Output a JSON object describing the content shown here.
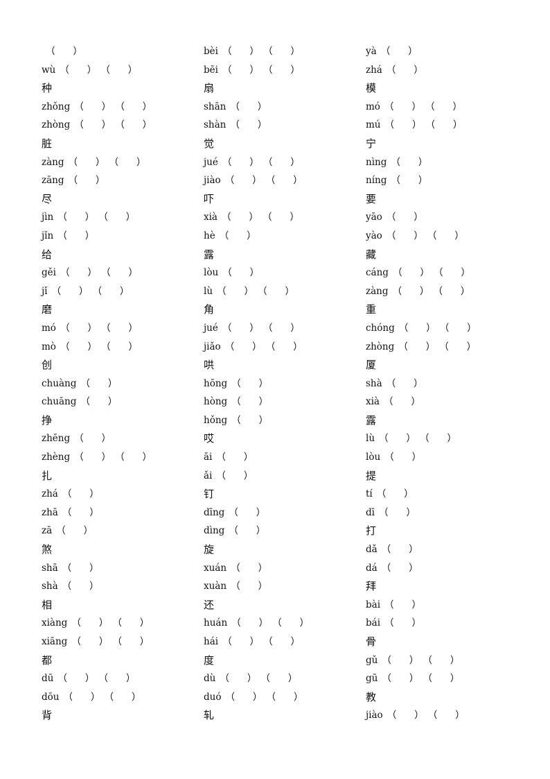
{
  "columns": [
    [
      {
        "t": "",
        "n": 1
      },
      {
        "t": "wù",
        "n": 2
      },
      {
        "t": "种",
        "h": true
      },
      {
        "t": "zhǒng",
        "n": 2
      },
      {
        "t": "zhòng",
        "n": 2
      },
      {
        "t": "脏",
        "h": true
      },
      {
        "t": "zàng",
        "n": 2
      },
      {
        "t": "zāng",
        "n": 1
      },
      {
        "t": "尽",
        "h": true
      },
      {
        "t": "jìn",
        "n": 2
      },
      {
        "t": "jǐn",
        "n": 1
      },
      {
        "t": "给",
        "h": true
      },
      {
        "t": "gěi",
        "n": 2
      },
      {
        "t": "jǐ",
        "n": 2
      },
      {
        "t": "磨",
        "h": true
      },
      {
        "t": "mó",
        "n": 2
      },
      {
        "t": "mò",
        "n": 2
      },
      {
        "t": "创",
        "h": true
      },
      {
        "t": "chuàng",
        "n": 1
      },
      {
        "t": "chuāng",
        "n": 1
      },
      {
        "t": "挣",
        "h": true
      },
      {
        "t": "zhēng",
        "n": 1
      },
      {
        "t": "zhèng",
        "n": 2
      },
      {
        "t": "扎",
        "h": true
      },
      {
        "t": "zhá",
        "n": 1
      },
      {
        "t": "zhā",
        "n": 1
      },
      {
        "t": "zā",
        "n": 1
      },
      {
        "t": "煞",
        "h": true
      },
      {
        "t": "shā",
        "n": 1
      },
      {
        "t": "shà",
        "n": 1
      },
      {
        "t": "相",
        "h": true
      },
      {
        "t": "xiàng",
        "n": 2
      },
      {
        "t": "xiāng",
        "n": 2
      },
      {
        "t": "都",
        "h": true
      },
      {
        "t": "dū",
        "n": 2
      },
      {
        "t": "dōu",
        "n": 2
      },
      {
        "t": "背",
        "h": true
      }
    ],
    [
      {
        "t": "bèi",
        "n": 2
      },
      {
        "t": "bēi",
        "n": 2
      },
      {
        "t": "扇",
        "h": true
      },
      {
        "t": "shān",
        "n": 1
      },
      {
        "t": "shàn",
        "n": 1
      },
      {
        "t": "觉",
        "h": true
      },
      {
        "t": "jué",
        "n": 2
      },
      {
        "t": "jiào",
        "n": 2
      },
      {
        "t": "吓",
        "h": true
      },
      {
        "t": "xià",
        "n": 2
      },
      {
        "t": "hè",
        "n": 1
      },
      {
        "t": "露",
        "h": true
      },
      {
        "t": "lòu",
        "n": 1
      },
      {
        "t": "lù",
        "n": 2
      },
      {
        "t": "角",
        "h": true
      },
      {
        "t": "jué",
        "n": 2
      },
      {
        "t": "jiǎo",
        "n": 2
      },
      {
        "t": "哄",
        "h": true
      },
      {
        "t": "hōng",
        "n": 1
      },
      {
        "t": "hòng",
        "n": 1
      },
      {
        "t": "hǒng",
        "n": 1
      },
      {
        "t": "哎",
        "h": true
      },
      {
        "t": "āi",
        "n": 1
      },
      {
        "t": "ǎi",
        "n": 1
      },
      {
        "t": "钉",
        "h": true
      },
      {
        "t": "dīng",
        "n": 1
      },
      {
        "t": "dìng",
        "n": 1
      },
      {
        "t": "旋",
        "h": true
      },
      {
        "t": "xuán",
        "n": 1
      },
      {
        "t": "xuàn",
        "n": 1
      },
      {
        "t": "还",
        "h": true
      },
      {
        "t": "huán",
        "n": 2
      },
      {
        "t": "hái",
        "n": 2
      },
      {
        "t": "度",
        "h": true
      },
      {
        "t": "dù",
        "n": 2
      },
      {
        "t": "duó",
        "n": 2
      },
      {
        "t": "轧",
        "h": true
      }
    ],
    [
      {
        "t": "yà",
        "n": 1
      },
      {
        "t": "zhá",
        "n": 1
      },
      {
        "t": "模",
        "h": true
      },
      {
        "t": "mó",
        "n": 2
      },
      {
        "t": "mú",
        "n": 2
      },
      {
        "t": "宁",
        "h": true
      },
      {
        "t": "nìng",
        "n": 1
      },
      {
        "t": "níng",
        "n": 1
      },
      {
        "t": "要",
        "h": true
      },
      {
        "t": "yāo",
        "n": 1
      },
      {
        "t": "yào",
        "n": 2
      },
      {
        "t": "藏",
        "h": true
      },
      {
        "t": "cáng",
        "n": 2
      },
      {
        "t": "zàng",
        "n": 2
      },
      {
        "t": "重",
        "h": true
      },
      {
        "t": "chóng",
        "n": 2
      },
      {
        "t": "zhòng",
        "n": 2
      },
      {
        "t": "厦",
        "h": true
      },
      {
        "t": "shà",
        "n": 1
      },
      {
        "t": "xià",
        "n": 1
      },
      {
        "t": "露",
        "h": true
      },
      {
        "t": "lù",
        "n": 2
      },
      {
        "t": "lòu",
        "n": 1
      },
      {
        "t": "提",
        "h": true
      },
      {
        "t": "tí",
        "n": 1
      },
      {
        "t": "dī",
        "n": 1
      },
      {
        "t": "打",
        "h": true
      },
      {
        "t": "dǎ",
        "n": 1
      },
      {
        "t": "dá",
        "n": 1
      },
      {
        "t": "拜",
        "h": true
      },
      {
        "t": "bài",
        "n": 1
      },
      {
        "t": "bái",
        "n": 1
      },
      {
        "t": "骨",
        "h": true
      },
      {
        "t": "gǔ",
        "n": 2
      },
      {
        "t": "gū",
        "n": 2
      },
      {
        "t": "教",
        "h": true
      },
      {
        "t": "jiào",
        "n": 2
      }
    ]
  ],
  "paren_open": "（",
  "paren_close": "）"
}
